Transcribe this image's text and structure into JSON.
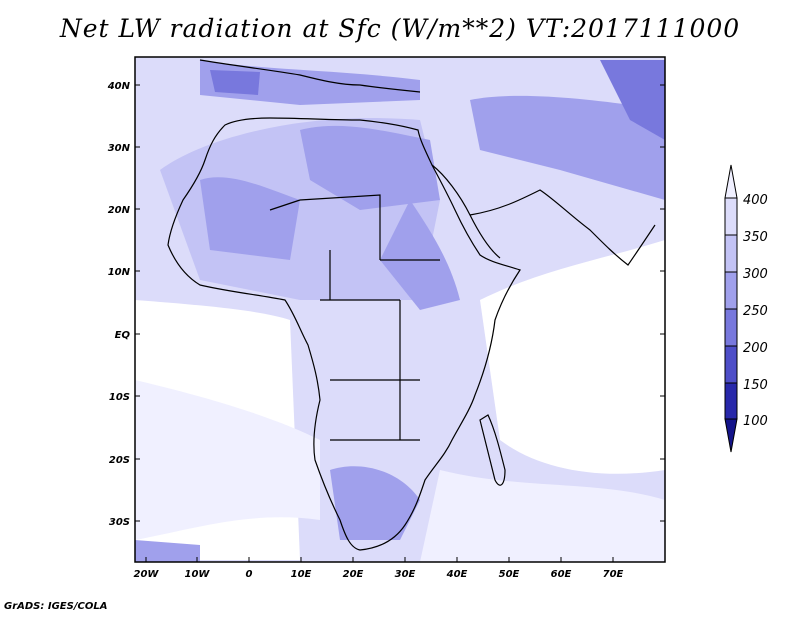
{
  "title": "Net LW radiation at Sfc (W/m**2) VT:2017111000",
  "footer": "GrADS: IGES/COLA",
  "map": {
    "lat_labels": [
      "40N",
      "30N",
      "20N",
      "10N",
      "EQ",
      "10S",
      "20S",
      "30S"
    ],
    "lon_labels": [
      "20W",
      "10W",
      "0",
      "10E",
      "20E",
      "30E",
      "40E",
      "50E",
      "60E",
      "70E"
    ]
  },
  "legend": {
    "levels": [
      "400",
      "350",
      "300",
      "250",
      "200",
      "150",
      "100"
    ],
    "colors": [
      "#f0f0ff",
      "#dcdcfa",
      "#c3c3f5",
      "#a0a0ec",
      "#7878dd",
      "#4e4ec8",
      "#2828aa",
      "#14148a"
    ],
    "arrows": [
      "triangle-up-icon",
      "triangle-down-icon"
    ]
  },
  "colors": {
    "frame": "#000000",
    "ocean_white": "#ffffff",
    "lightest": "#f0f0ff",
    "light": "#dcdcfa",
    "mid": "#c3c3f5",
    "darker": "#a0a0ec",
    "dark": "#7878dd"
  }
}
